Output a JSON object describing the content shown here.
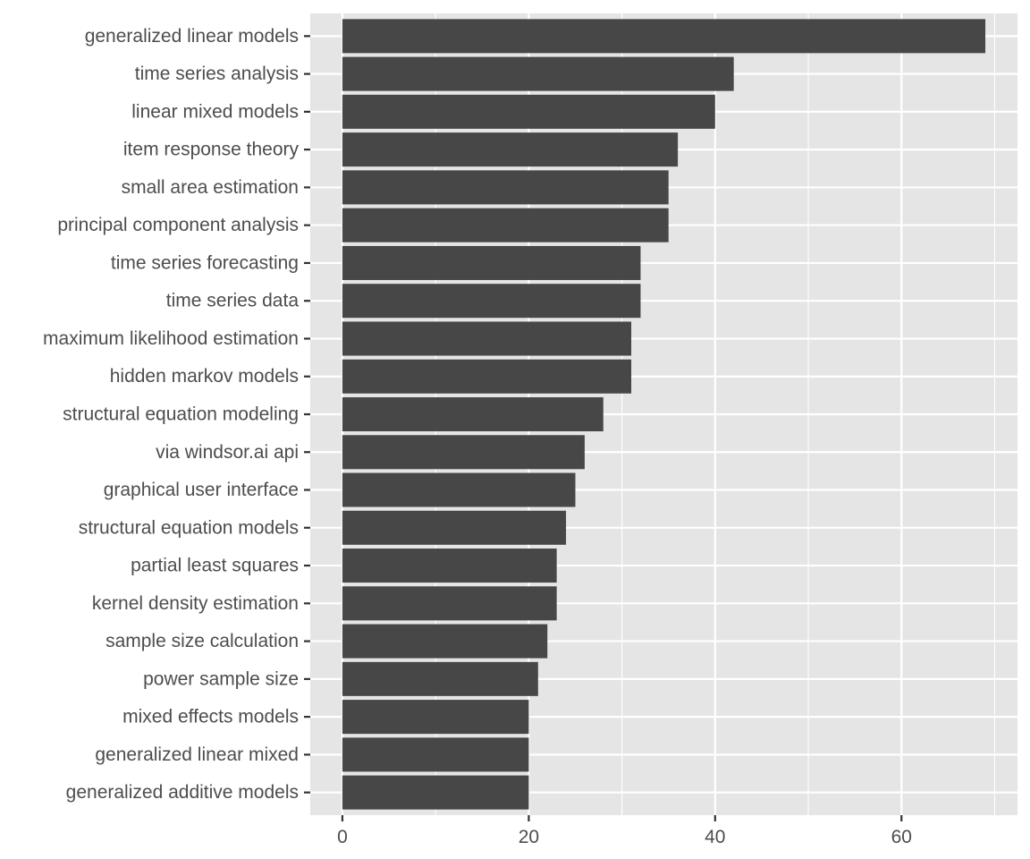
{
  "chart_data": {
    "type": "bar",
    "orientation": "horizontal",
    "title": "",
    "xlabel": "",
    "ylabel": "",
    "categories": [
      "generalized linear models",
      "time series analysis",
      "linear mixed models",
      "item response theory",
      "small area estimation",
      "principal component analysis",
      "time series forecasting",
      "time series data",
      "maximum likelihood estimation",
      "hidden markov models",
      "structural equation modeling",
      "via windsor.ai api",
      "graphical user interface",
      "structural equation models",
      "partial least squares",
      "kernel density estimation",
      "sample size calculation",
      "power sample size",
      "mixed effects models",
      "generalized linear mixed",
      "generalized additive models"
    ],
    "values": [
      69,
      42,
      40,
      36,
      35,
      35,
      32,
      32,
      31,
      31,
      28,
      26,
      25,
      24,
      23,
      23,
      22,
      21,
      20,
      20,
      20
    ],
    "xlim": [
      -3.45,
      72.45
    ],
    "xticks": [
      0,
      20,
      40,
      60
    ],
    "xtick_labels": [
      "0",
      "20",
      "40",
      "60"
    ],
    "grid": true,
    "legend": "none",
    "colors": {
      "bar": "#474747",
      "panel": "#e5e5e5",
      "grid": "#ffffff",
      "text": "#4d4d4d",
      "tick": "#333333"
    }
  }
}
